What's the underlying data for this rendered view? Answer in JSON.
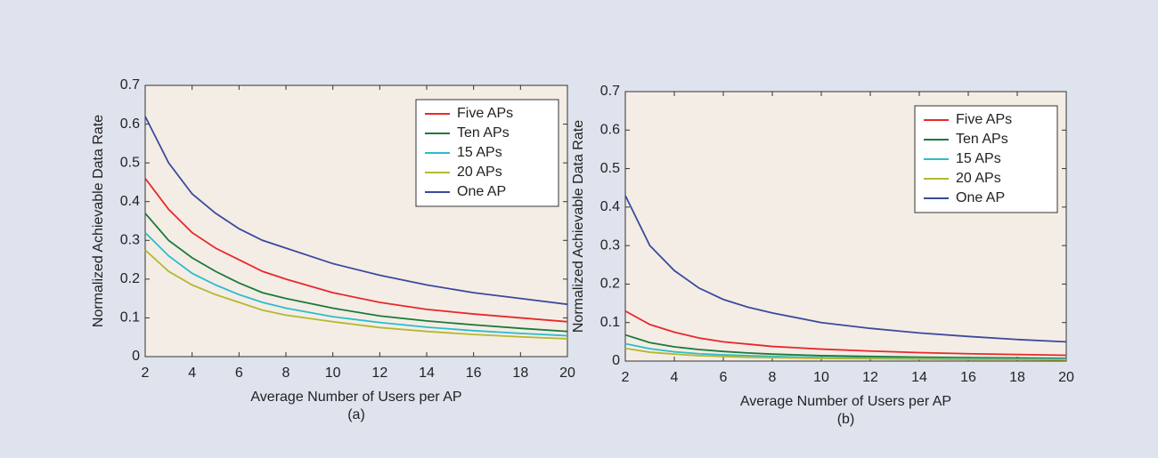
{
  "chart_data": [
    {
      "type": "line",
      "xlabel": "Average Number of Users per AP",
      "ylabel": "Normalized Achievable Data Rate",
      "caption": "(a)",
      "x": [
        2,
        3,
        4,
        5,
        6,
        7,
        8,
        10,
        12,
        14,
        16,
        18,
        20
      ],
      "xlim": [
        2,
        20
      ],
      "xticks": [
        2,
        4,
        6,
        8,
        10,
        12,
        14,
        16,
        18,
        20
      ],
      "ylim": [
        0,
        0.7
      ],
      "yticks": [
        0,
        0.1,
        0.2,
        0.3,
        0.4,
        0.5,
        0.6,
        0.7
      ],
      "legend": "upper right",
      "series": [
        {
          "name": "Five APs",
          "color": "#e8282a",
          "values": [
            0.46,
            0.38,
            0.32,
            0.28,
            0.25,
            0.22,
            0.2,
            0.165,
            0.14,
            0.122,
            0.11,
            0.1,
            0.09
          ]
        },
        {
          "name": "Ten APs",
          "color": "#1a7a3a",
          "values": [
            0.37,
            0.3,
            0.255,
            0.22,
            0.19,
            0.165,
            0.15,
            0.125,
            0.105,
            0.092,
            0.082,
            0.073,
            0.065
          ]
        },
        {
          "name": "15 APs",
          "color": "#2bbdcc",
          "values": [
            0.32,
            0.26,
            0.215,
            0.185,
            0.16,
            0.14,
            0.125,
            0.103,
            0.088,
            0.076,
            0.067,
            0.06,
            0.054
          ]
        },
        {
          "name": "20 APs",
          "color": "#b5b830",
          "values": [
            0.275,
            0.22,
            0.185,
            0.16,
            0.14,
            0.12,
            0.107,
            0.09,
            0.075,
            0.065,
            0.057,
            0.051,
            0.046
          ]
        },
        {
          "name": "One AP",
          "color": "#3b4a9c",
          "values": [
            0.62,
            0.5,
            0.42,
            0.37,
            0.33,
            0.3,
            0.28,
            0.24,
            0.21,
            0.185,
            0.165,
            0.15,
            0.135
          ]
        }
      ]
    },
    {
      "type": "line",
      "xlabel": "Average Number of Users per AP",
      "ylabel": "Normalized Achievable Data Rate",
      "caption": "(b)",
      "x": [
        2,
        3,
        4,
        5,
        6,
        7,
        8,
        10,
        12,
        14,
        16,
        18,
        20
      ],
      "xlim": [
        2,
        20
      ],
      "xticks": [
        2,
        4,
        6,
        8,
        10,
        12,
        14,
        16,
        18,
        20
      ],
      "ylim": [
        0,
        0.7
      ],
      "yticks": [
        0,
        0.1,
        0.2,
        0.3,
        0.4,
        0.5,
        0.6,
        0.7
      ],
      "legend": "upper right",
      "series": [
        {
          "name": "Five APs",
          "color": "#e8282a",
          "values": [
            0.13,
            0.095,
            0.075,
            0.06,
            0.05,
            0.044,
            0.038,
            0.031,
            0.026,
            0.022,
            0.019,
            0.017,
            0.015
          ]
        },
        {
          "name": "Ten APs",
          "color": "#1a7a3a",
          "values": [
            0.068,
            0.048,
            0.037,
            0.03,
            0.025,
            0.021,
            0.018,
            0.014,
            0.012,
            0.01,
            0.009,
            0.008,
            0.007
          ]
        },
        {
          "name": "15 APs",
          "color": "#2bbdcc",
          "values": [
            0.045,
            0.032,
            0.024,
            0.019,
            0.016,
            0.014,
            0.012,
            0.009,
            0.008,
            0.007,
            0.006,
            0.005,
            0.005
          ]
        },
        {
          "name": "20 APs",
          "color": "#b5b830",
          "values": [
            0.033,
            0.023,
            0.018,
            0.014,
            0.012,
            0.01,
            0.009,
            0.007,
            0.006,
            0.005,
            0.004,
            0.004,
            0.003
          ]
        },
        {
          "name": "One AP",
          "color": "#3b4a9c",
          "values": [
            0.43,
            0.3,
            0.235,
            0.19,
            0.16,
            0.14,
            0.125,
            0.1,
            0.085,
            0.073,
            0.064,
            0.056,
            0.05
          ]
        }
      ]
    }
  ]
}
